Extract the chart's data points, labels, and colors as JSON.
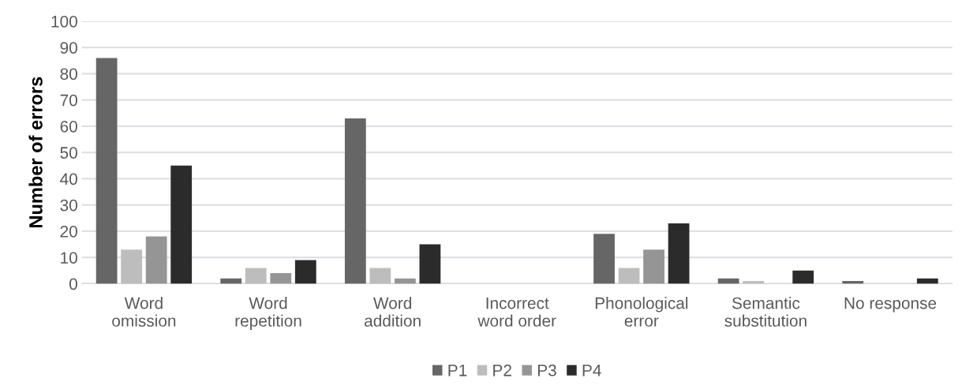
{
  "chart_data": {
    "type": "bar",
    "ylabel": "Number of errors",
    "categories": [
      "Word\nomission",
      "Word\nrepetition",
      "Word\naddition",
      "Incorrect\nword order",
      "Phonological\nerror",
      "Semantic\nsubstitution",
      "No response"
    ],
    "series": [
      {
        "name": "P1",
        "color": "#666666",
        "values": [
          86,
          2,
          63,
          0,
          19,
          2,
          1
        ]
      },
      {
        "name": "P2",
        "color": "#bdbdbd",
        "values": [
          13,
          6,
          6,
          0,
          6,
          1,
          0
        ]
      },
      {
        "name": "P3",
        "color": "#959595",
        "values": [
          18,
          4,
          2,
          0,
          13,
          0,
          0
        ]
      },
      {
        "name": "P4",
        "color": "#2b2b2b",
        "values": [
          45,
          9,
          15,
          0,
          23,
          5,
          2
        ]
      }
    ],
    "ylim": [
      0,
      100
    ],
    "yticks": [
      0,
      10,
      20,
      30,
      40,
      50,
      60,
      70,
      80,
      90,
      100
    ],
    "grid": "y",
    "legend": "bottom"
  }
}
